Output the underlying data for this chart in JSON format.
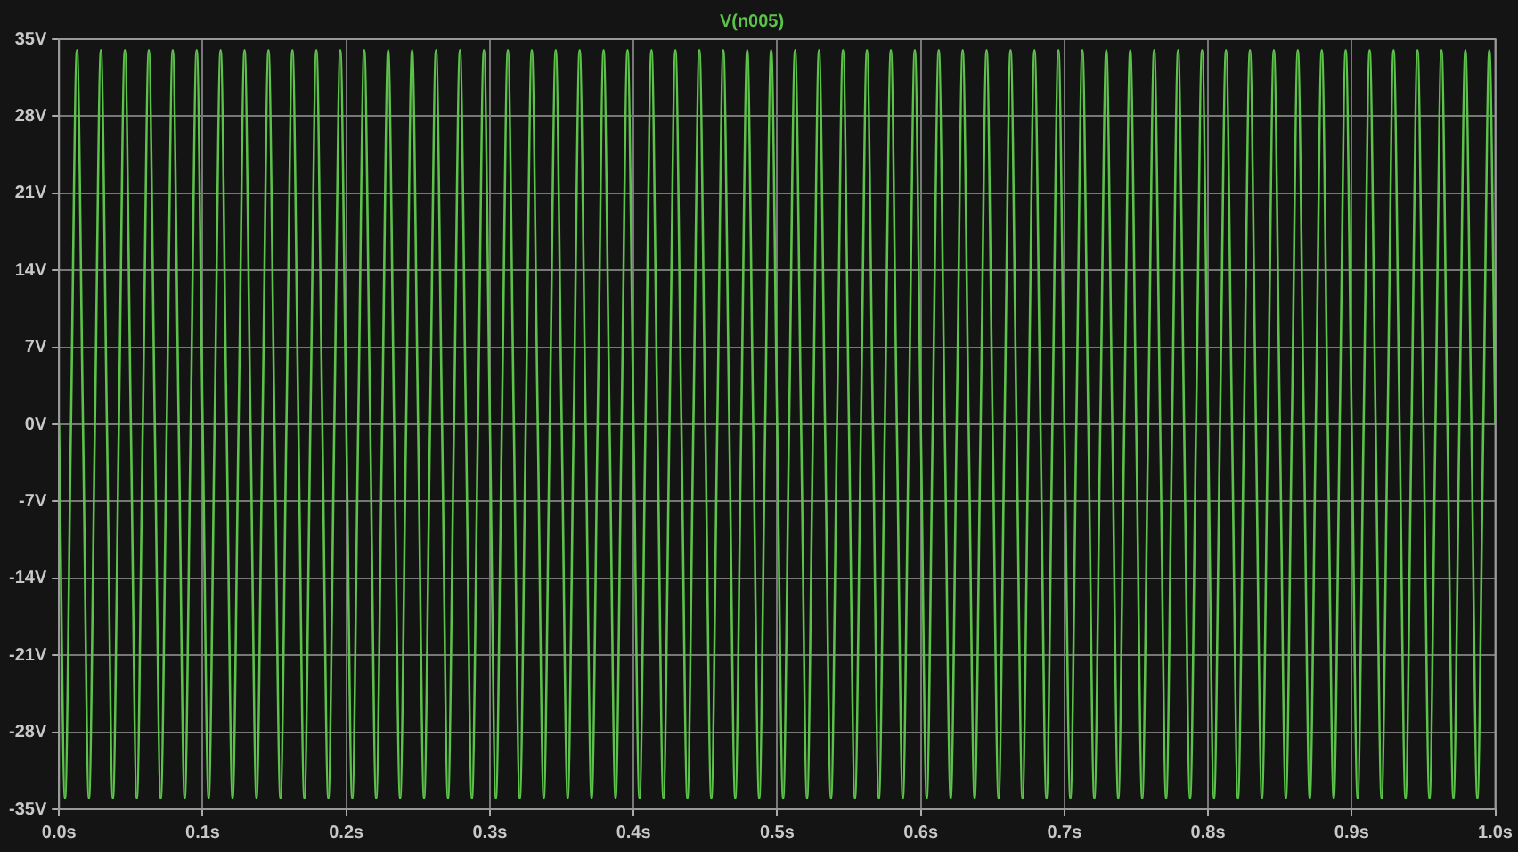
{
  "chart_data": {
    "type": "line",
    "title": "V(n005)",
    "grid": true,
    "marker": "none",
    "line_style": "solid",
    "legend": false,
    "xlim": [
      0,
      1
    ],
    "ylim": [
      -35,
      35
    ],
    "xticks": [
      {
        "value": 0,
        "label": "0.0s"
      },
      {
        "value": 0.1,
        "label": "0.1s"
      },
      {
        "value": 0.2,
        "label": "0.2s"
      },
      {
        "value": 0.3,
        "label": "0.3s"
      },
      {
        "value": 0.4,
        "label": "0.4s"
      },
      {
        "value": 0.5,
        "label": "0.5s"
      },
      {
        "value": 0.6,
        "label": "0.6s"
      },
      {
        "value": 0.7,
        "label": "0.7s"
      },
      {
        "value": 0.8,
        "label": "0.8s"
      },
      {
        "value": 0.9,
        "label": "0.9s"
      },
      {
        "value": 1,
        "label": "1.0s"
      }
    ],
    "yticks": [
      {
        "value": -35,
        "label": "-35V"
      },
      {
        "value": -28,
        "label": "-28V"
      },
      {
        "value": -21,
        "label": "-21V"
      },
      {
        "value": -14,
        "label": "-14V"
      },
      {
        "value": -7,
        "label": "-7V"
      },
      {
        "value": 0,
        "label": "0V"
      },
      {
        "value": 7,
        "label": "7V"
      },
      {
        "value": 14,
        "label": "14V"
      },
      {
        "value": 21,
        "label": "21V"
      },
      {
        "value": 28,
        "label": "28V"
      },
      {
        "value": 35,
        "label": "35V"
      }
    ],
    "x": [
      0,
      0.00417,
      0.00833,
      0.0125,
      0.01667,
      0.02083,
      0.025,
      0.02917,
      0.03333,
      0.0375,
      0.04167,
      0.04583,
      0.05,
      0.05417,
      0.05833,
      0.0625,
      0.06667,
      0.07083,
      0.075,
      0.07917,
      0.08333,
      0.0875,
      0.09167,
      0.09583,
      0.1,
      0.10417,
      0.10833,
      0.1125,
      0.11667,
      0.12083,
      0.125,
      0.12917,
      0.13333,
      0.1375,
      0.14167,
      0.14583,
      0.15,
      0.15417,
      0.15833,
      0.1625,
      0.16667,
      0.17083,
      0.175,
      0.17917,
      0.18333,
      0.1875,
      0.19167,
      0.19583,
      0.2,
      0.20417,
      0.20833,
      0.2125,
      0.21667,
      0.22083,
      0.225,
      0.22917,
      0.23333,
      0.2375,
      0.24167,
      0.24583,
      0.25,
      0.25417,
      0.25833,
      0.2625,
      0.26667,
      0.27083,
      0.275,
      0.27917,
      0.28333,
      0.2875,
      0.29167,
      0.29583,
      0.3,
      0.30417,
      0.30833,
      0.3125,
      0.31667,
      0.32083,
      0.325,
      0.32917,
      0.33333,
      0.3375,
      0.34167,
      0.34583,
      0.35,
      0.35417,
      0.35833,
      0.3625,
      0.36667,
      0.37083,
      0.375,
      0.37917,
      0.38333,
      0.3875,
      0.39167,
      0.39583,
      0.4,
      0.40417,
      0.40833,
      0.4125,
      0.41667,
      0.42083,
      0.425,
      0.42917,
      0.43333,
      0.4375,
      0.44167,
      0.44583,
      0.45,
      0.45417,
      0.45833,
      0.4625,
      0.46667,
      0.47083,
      0.475,
      0.47917,
      0.48333,
      0.4875,
      0.49167,
      0.49583,
      0.5,
      0.50417,
      0.50833,
      0.5125,
      0.51667,
      0.52083,
      0.525,
      0.52917,
      0.53333,
      0.5375,
      0.54167,
      0.54583,
      0.55,
      0.55417,
      0.55833,
      0.5625,
      0.56667,
      0.57083,
      0.575,
      0.57917,
      0.58333,
      0.5875,
      0.59167,
      0.59583,
      0.6,
      0.60417,
      0.60833,
      0.6125,
      0.61667,
      0.62083,
      0.625,
      0.62917,
      0.63333,
      0.6375,
      0.64167,
      0.64583,
      0.65,
      0.65417,
      0.65833,
      0.6625,
      0.66667,
      0.67083,
      0.675,
      0.67917,
      0.68333,
      0.6875,
      0.69167,
      0.69583,
      0.7,
      0.70417,
      0.70833,
      0.7125,
      0.71667,
      0.72083,
      0.725,
      0.72917,
      0.73333,
      0.7375,
      0.74167,
      0.74583,
      0.75,
      0.75417,
      0.75833,
      0.7625,
      0.76667,
      0.77083,
      0.775,
      0.77917,
      0.78333,
      0.7875,
      0.79167,
      0.79583,
      0.8,
      0.80417,
      0.80833,
      0.8125,
      0.81667,
      0.82083,
      0.825,
      0.82917,
      0.83333,
      0.8375,
      0.84167,
      0.84583,
      0.85,
      0.85417,
      0.85833,
      0.8625,
      0.86667,
      0.87083,
      0.875,
      0.87917,
      0.88333,
      0.8875,
      0.89167,
      0.89583,
      0.9,
      0.90417,
      0.90833,
      0.9125,
      0.91667,
      0.92083,
      0.925,
      0.92917,
      0.93333,
      0.9375,
      0.94167,
      0.94583,
      0.95,
      0.95417,
      0.95833,
      0.9625,
      0.96667,
      0.97083,
      0.975,
      0.97917,
      0.98333,
      0.9875,
      0.99167,
      0.99583,
      1
    ],
    "series": [
      {
        "color": "#5cc24a",
        "values": [
          0,
          -34,
          0,
          34,
          0,
          -34,
          0,
          34,
          0,
          -34,
          0,
          34,
          0,
          -34,
          0,
          34,
          0,
          -34,
          0,
          34,
          0,
          -34,
          0,
          34,
          0,
          -34,
          0,
          34,
          0,
          -34,
          0,
          34,
          0,
          -34,
          0,
          34,
          0,
          -34,
          0,
          34,
          0,
          -34,
          0,
          34,
          0,
          -34,
          0,
          34,
          0,
          -34,
          0,
          34,
          0,
          -34,
          0,
          34,
          0,
          -34,
          0,
          34,
          0,
          -34,
          0,
          34,
          0,
          -34,
          0,
          34,
          0,
          -34,
          0,
          34,
          0,
          -34,
          0,
          34,
          0,
          -34,
          0,
          34,
          0,
          -34,
          0,
          34,
          0,
          -34,
          0,
          34,
          0,
          -34,
          0,
          34,
          0,
          -34,
          0,
          34,
          0,
          -34,
          0,
          34,
          0,
          -34,
          0,
          34,
          0,
          -34,
          0,
          34,
          0,
          -34,
          0,
          34,
          0,
          -34,
          0,
          34,
          0,
          -34,
          0,
          34,
          0,
          -34,
          0,
          34,
          0,
          -34,
          0,
          34,
          0,
          -34,
          0,
          34,
          0,
          -34,
          0,
          34,
          0,
          -34,
          0,
          34,
          0,
          -34,
          0,
          34,
          0,
          -34,
          0,
          34,
          0,
          -34,
          0,
          34,
          0,
          -34,
          0,
          34,
          0,
          -34,
          0,
          34,
          0,
          -34,
          0,
          34,
          0,
          -34,
          0,
          34,
          0,
          -34,
          0,
          34,
          0,
          -34,
          0,
          34,
          0,
          -34,
          0,
          34,
          0,
          -34,
          0,
          34,
          0,
          -34,
          0,
          34,
          0,
          -34,
          0,
          34,
          0,
          -34,
          0,
          34,
          0,
          -34,
          0,
          34,
          0,
          -34,
          0,
          34,
          0,
          -34,
          0,
          34,
          0,
          -34,
          0,
          34,
          0,
          -34,
          0,
          34,
          0,
          -34,
          0,
          34,
          0,
          -34,
          0,
          34,
          0,
          -34,
          0,
          34,
          0,
          -34,
          0,
          34,
          0,
          -34,
          0,
          34,
          0,
          -34,
          0,
          34,
          0
        ]
      }
    ]
  }
}
